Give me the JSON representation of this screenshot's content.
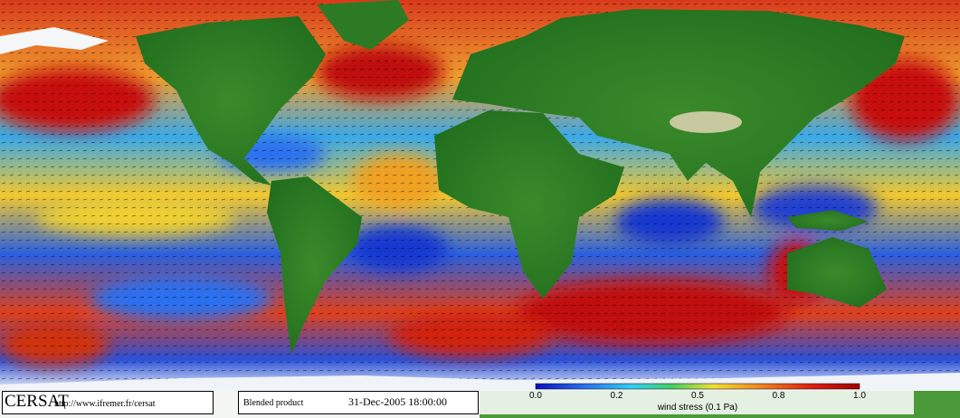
{
  "branding": {
    "logo": "CERSAT",
    "url": "http://www.ifremer.fr/cersat"
  },
  "product": {
    "name": "Blended product",
    "timestamp": "31-Dec-2005 18:00:00"
  },
  "colorbar": {
    "tick_labels": [
      "0.0",
      "0.2",
      "0.5",
      "0.8",
      "1.0"
    ],
    "label": "wind stress (0.1 Pa)"
  }
}
